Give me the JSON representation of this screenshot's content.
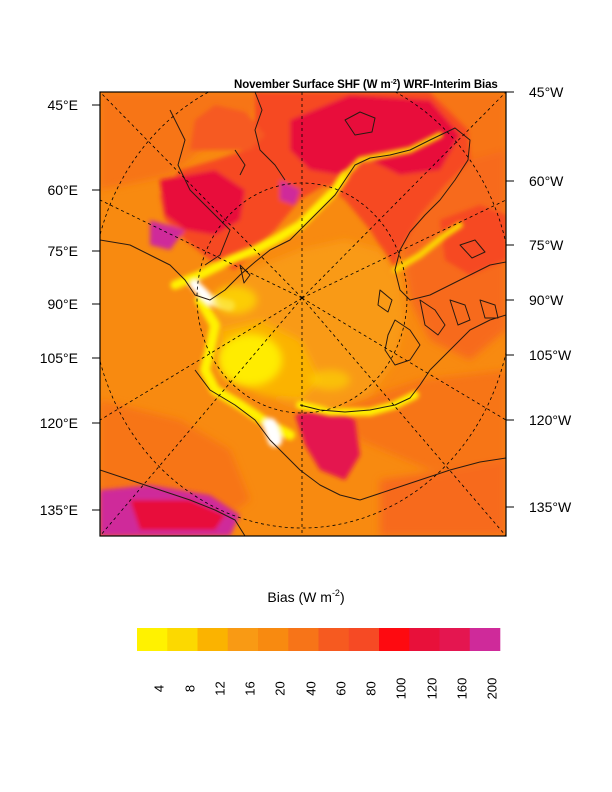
{
  "title": {
    "prefix": "November Surface SHF (W m",
    "exponent": "-2",
    "suffix": ") WRF-Interim Bias"
  },
  "left_labels": [
    "45°E",
    "60°E",
    "75°E",
    "90°E",
    "105°E",
    "120°E",
    "135°E"
  ],
  "right_labels": [
    "45°W",
    "60°W",
    "75°W",
    "90°W",
    "105°W",
    "120°W",
    "135°W"
  ],
  "colorbar": {
    "title_prefix": "Bias (W m",
    "title_exponent": "-2",
    "title_suffix": ")",
    "labels": [
      "4",
      "8",
      "12",
      "16",
      "20",
      "40",
      "60",
      "80",
      "100",
      "120",
      "160",
      "200"
    ],
    "colors": [
      "#fff200",
      "#fcd900",
      "#fbb300",
      "#f99a14",
      "#f88a10",
      "#f77418",
      "#f65a20",
      "#f64a24",
      "#fe0a10",
      "#e8103a",
      "#e41650",
      "#cf2a9a"
    ]
  },
  "palette": {
    "ocean_background": "#f88a10",
    "coastline": "#2a1a10",
    "grid": "#000000"
  }
}
